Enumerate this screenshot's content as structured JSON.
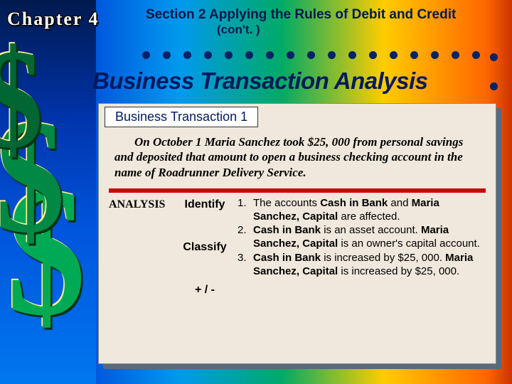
{
  "chapter": "Chapter 4",
  "section_header": "Section 2  Applying the Rules of Debit and Credit",
  "section_cont": "(con't. )",
  "banner": "Business Transaction Analysis",
  "transaction_header": "Business Transaction 1",
  "scenario": "On October 1 Maria Sanchez took $25, 000 from personal savings and deposited that amount to open a business checking account in the name of Roadrunner Delivery Service.",
  "analysis_label": "ANALYSIS",
  "steps": {
    "identify": "Identify",
    "classify": "Classify",
    "plusminus": "+ / -"
  },
  "items": {
    "n1": "1.",
    "t1a": "The accounts ",
    "t1b": "Cash in Bank",
    "t1c": " and ",
    "t1d": "Maria Sanchez, Capital",
    "t1e": " are affected.",
    "n2": "2.",
    "t2a": " ",
    "t2b": "Cash in Bank",
    "t2c": " is an asset account. ",
    "t2d": "Maria Sanchez, Capital",
    "t2e": " is an owner's capital account.",
    "n3": "3.",
    "t3a": " ",
    "t3b": "Cash in Bank",
    "t3c": " is increased by $25, 000. ",
    "t3d": "Maria Sanchez, Capital",
    "t3e": " is increased by $25, 000."
  },
  "colors": {
    "red_bar": "#cc0000",
    "banner_text": "#001a5c",
    "content_bg": "#f0e8dc"
  },
  "dots_row_count": 17,
  "dots_col_count": 3
}
